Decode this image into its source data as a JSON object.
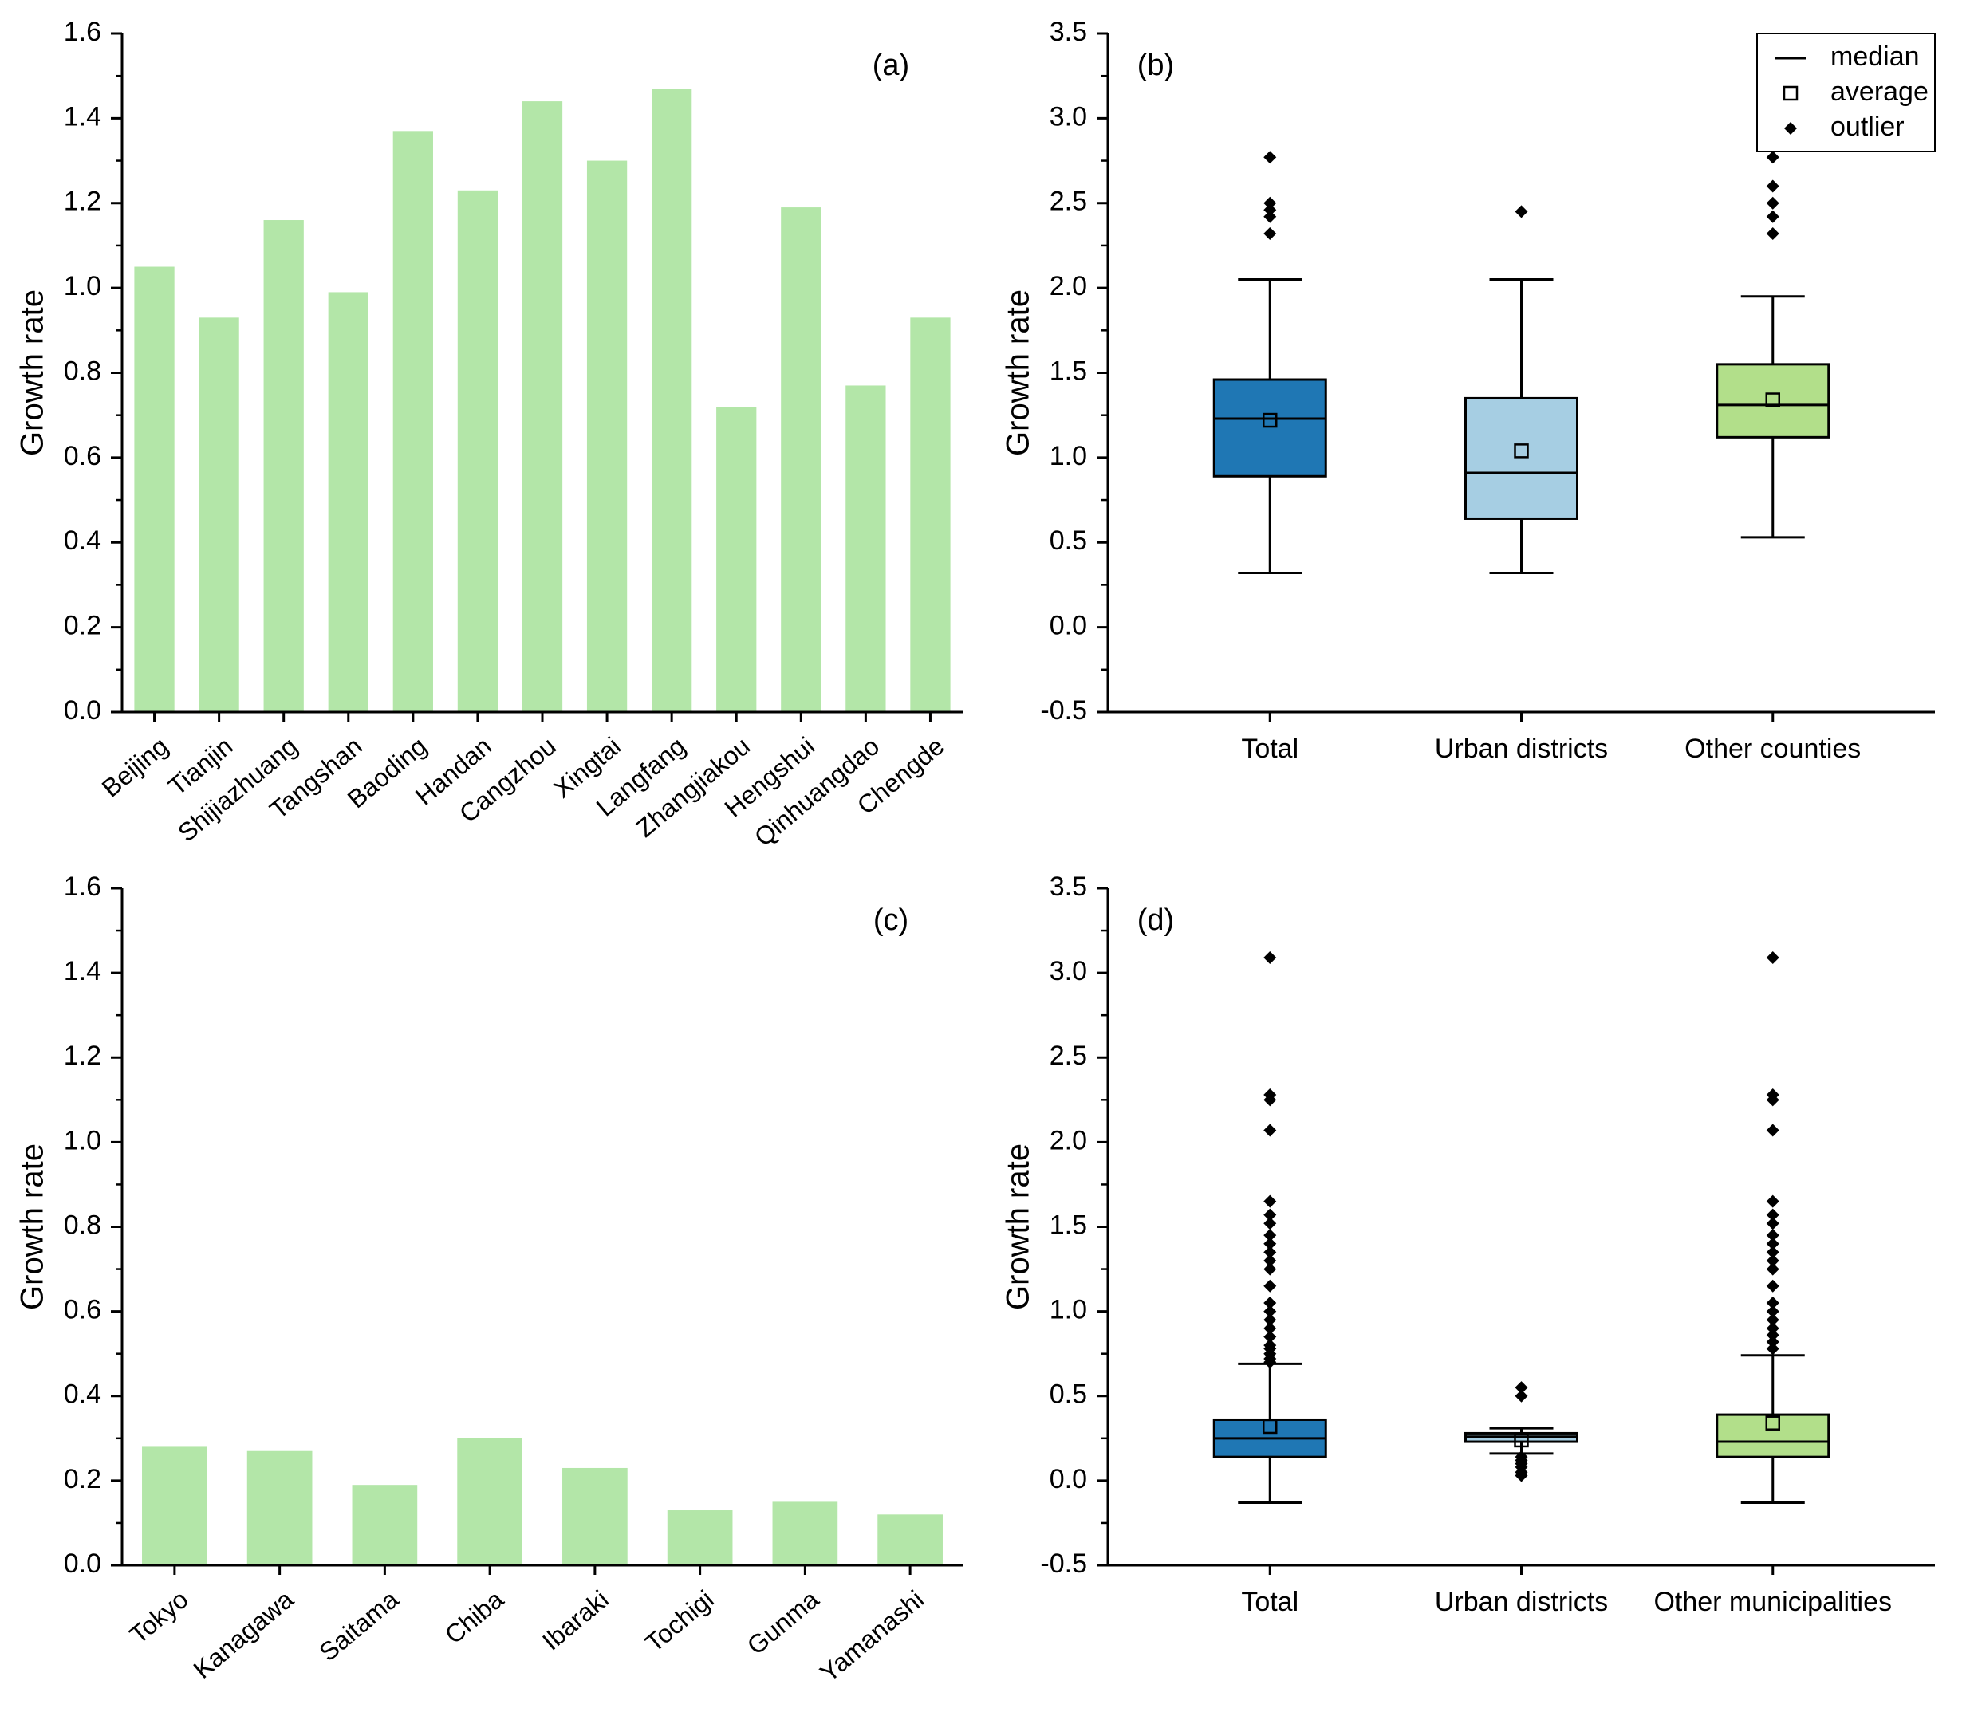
{
  "colors": {
    "bar": "#b3e6a8",
    "box_total": "#1f77b4",
    "box_urban": "#a6cee3",
    "box_other": "#b2df8a",
    "ink": "#000000"
  },
  "chart_data": [
    {
      "id": "a",
      "type": "bar",
      "panel_label": "(a)",
      "ylabel": "Growth rate",
      "ylim": [
        0,
        1.6
      ],
      "yticks": [
        "0.0",
        "0.2",
        "0.4",
        "0.6",
        "0.8",
        "1.0",
        "1.2",
        "1.4",
        "1.6"
      ],
      "categories": [
        "Beijing",
        "Tianjin",
        "Shijiazhuang",
        "Tangshan",
        "Baoding",
        "Handan",
        "Cangzhou",
        "Xingtai",
        "Langfang",
        "Zhangjiakou",
        "Hengshui",
        "Qinhuangdao",
        "Chengde"
      ],
      "values": [
        1.05,
        0.93,
        1.16,
        0.99,
        1.37,
        1.23,
        1.44,
        1.3,
        1.47,
        0.72,
        1.19,
        0.77,
        0.93
      ]
    },
    {
      "id": "b",
      "type": "box",
      "panel_label": "(b)",
      "ylabel": "Growth rate",
      "ylim": [
        -0.5,
        3.5
      ],
      "yticks": [
        "-0.5",
        "0.0",
        "0.5",
        "1.0",
        "1.5",
        "2.0",
        "2.5",
        "3.0",
        "3.5"
      ],
      "legend": [
        {
          "symbol": "line",
          "label": "median"
        },
        {
          "symbol": "square",
          "label": "average"
        },
        {
          "symbol": "diamond",
          "label": "outlier"
        }
      ],
      "boxes": [
        {
          "label": "Total",
          "color_key": "box_total",
          "whisker_low": 0.32,
          "q1": 0.89,
          "median": 1.23,
          "mean": 1.22,
          "q3": 1.46,
          "whisker_high": 2.05,
          "outliers": [
            2.32,
            2.42,
            2.46,
            2.5,
            2.77
          ]
        },
        {
          "label": "Urban districts",
          "color_key": "box_urban",
          "whisker_low": 0.32,
          "q1": 0.64,
          "median": 0.91,
          "mean": 1.04,
          "q3": 1.35,
          "whisker_high": 2.05,
          "outliers": [
            2.45
          ]
        },
        {
          "label": "Other counties",
          "color_key": "box_other",
          "whisker_low": 0.53,
          "q1": 1.12,
          "median": 1.31,
          "mean": 1.34,
          "q3": 1.55,
          "whisker_high": 1.95,
          "outliers": [
            2.32,
            2.42,
            2.5,
            2.6,
            2.77
          ]
        }
      ]
    },
    {
      "id": "c",
      "type": "bar",
      "panel_label": "(c)",
      "ylabel": "Growth rate",
      "ylim": [
        0,
        1.6
      ],
      "yticks": [
        "0.0",
        "0.2",
        "0.4",
        "0.6",
        "0.8",
        "1.0",
        "1.2",
        "1.4",
        "1.6"
      ],
      "categories": [
        "Tokyo",
        "Kanagawa",
        "Saitama",
        "Chiba",
        "Ibaraki",
        "Tochigi",
        "Gunma",
        "Yamanashi"
      ],
      "values": [
        0.28,
        0.27,
        0.19,
        0.3,
        0.23,
        0.13,
        0.15,
        0.12
      ]
    },
    {
      "id": "d",
      "type": "box",
      "panel_label": "(d)",
      "ylabel": "Growth rate",
      "ylim": [
        -0.5,
        3.5
      ],
      "yticks": [
        "-0.5",
        "0.0",
        "0.5",
        "1.0",
        "1.5",
        "2.0",
        "2.5",
        "3.0",
        "3.5"
      ],
      "legend": [],
      "boxes": [
        {
          "label": "Total",
          "color_key": "box_total",
          "whisker_low": -0.13,
          "q1": 0.14,
          "median": 0.25,
          "mean": 0.32,
          "q3": 0.36,
          "whisker_high": 0.69,
          "outliers": [
            0.7,
            0.72,
            0.75,
            0.78,
            0.8,
            0.85,
            0.9,
            0.95,
            1.0,
            1.05,
            1.15,
            1.25,
            1.3,
            1.35,
            1.4,
            1.45,
            1.52,
            1.57,
            1.65,
            2.07,
            2.25,
            2.28,
            3.09
          ]
        },
        {
          "label": "Urban districts",
          "color_key": "box_urban",
          "whisker_low": 0.16,
          "q1": 0.23,
          "median": 0.26,
          "mean": 0.24,
          "q3": 0.28,
          "whisker_high": 0.31,
          "outliers": [
            0.03,
            0.05,
            0.08,
            0.1,
            0.12,
            0.14,
            0.5,
            0.55
          ]
        },
        {
          "label": "Other municipalities",
          "color_key": "box_other",
          "whisker_low": -0.13,
          "q1": 0.14,
          "median": 0.23,
          "mean": 0.34,
          "q3": 0.39,
          "whisker_high": 0.74,
          "outliers": [
            0.78,
            0.82,
            0.86,
            0.9,
            0.95,
            1.0,
            1.05,
            1.15,
            1.25,
            1.3,
            1.35,
            1.4,
            1.45,
            1.52,
            1.57,
            1.65,
            2.07,
            2.25,
            2.28,
            3.09
          ]
        }
      ]
    }
  ]
}
